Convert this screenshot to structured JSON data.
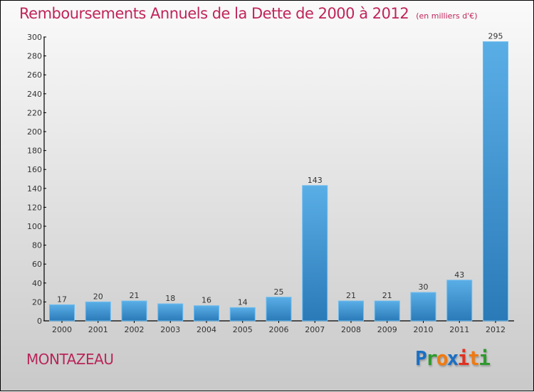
{
  "chart_data": {
    "type": "bar",
    "title": "Remboursements Annuels de la Dette de 2000 à 2012",
    "unit_note": "(en milliers d'€)",
    "categories": [
      "2000",
      "2001",
      "2002",
      "2003",
      "2004",
      "2005",
      "2006",
      "2007",
      "2008",
      "2009",
      "2010",
      "2011",
      "2012"
    ],
    "values": [
      17,
      20,
      21,
      18,
      16,
      14,
      25,
      143,
      21,
      21,
      30,
      43,
      295
    ],
    "ylim": [
      0,
      300
    ],
    "yticks": [
      0,
      20,
      40,
      60,
      80,
      100,
      120,
      140,
      160,
      180,
      200,
      220,
      240,
      260,
      280,
      300
    ],
    "xlabel": "",
    "ylabel": "",
    "grid": false,
    "bar_color": "#4a9fe0"
  },
  "footer": {
    "city": "MONTAZEAU"
  },
  "logo": {
    "letters": [
      "P",
      "r",
      "o",
      "x",
      "i",
      "t",
      "i"
    ],
    "colors": [
      "#1a6fc4",
      "#2e9a2e",
      "#f07a10",
      "#1a6fc4",
      "#e03020",
      "#f07a10",
      "#2e9a2e"
    ]
  }
}
